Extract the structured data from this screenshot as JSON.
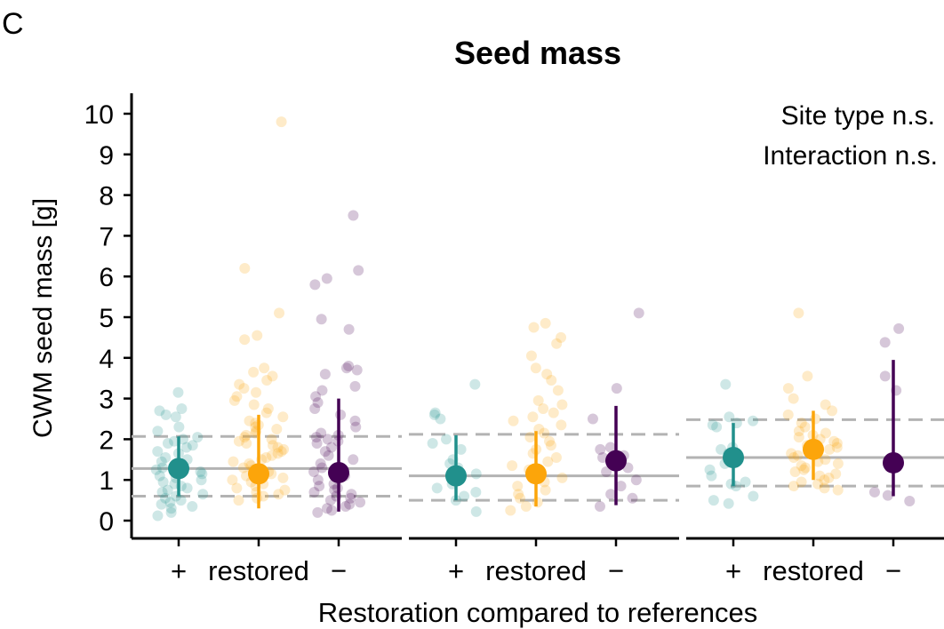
{
  "panel_letter": "C",
  "chart_data": {
    "type": "scatter",
    "title": "Seed mass",
    "xlabel": "Restoration compared to references",
    "ylabel": "CWM seed mass [g]",
    "ylim": [
      -0.4,
      10.5
    ],
    "yticks": [
      0,
      1,
      2,
      3,
      4,
      5,
      6,
      7,
      8,
      9,
      10
    ],
    "annotations": [
      "Site type n.s.",
      "Interaction n.s."
    ],
    "grid": false,
    "colors": {
      "plus": "#21908C",
      "restored": "#FCA50A",
      "minus": "#440154",
      "reference_line": "#B3B3B3"
    },
    "panels": [
      {
        "categories": [
          "+",
          "restored",
          "−"
        ],
        "reference": {
          "median": 1.28,
          "lower": 0.6,
          "upper": 2.07
        },
        "summary": [
          {
            "category": "+",
            "mean": 1.28,
            "low": 0.6,
            "high": 2.07
          },
          {
            "category": "restored",
            "mean": 1.15,
            "low": 0.3,
            "high": 2.6
          },
          {
            "category": "−",
            "mean": 1.18,
            "low": 0.22,
            "high": 3.0
          }
        ],
        "points": {
          "+": [
            3.15,
            2.75,
            2.7,
            2.6,
            2.55,
            2.3,
            2.2,
            2.05,
            2.0,
            1.95,
            1.9,
            1.85,
            1.8,
            1.7,
            1.65,
            1.55,
            1.5,
            1.45,
            1.4,
            1.35,
            1.3,
            1.25,
            1.2,
            1.15,
            1.1,
            1.05,
            1.0,
            0.95,
            0.9,
            0.85,
            0.8,
            0.75,
            0.7,
            0.65,
            0.6,
            0.55,
            0.5,
            0.45,
            0.4,
            0.35,
            0.3,
            0.2,
            0.12
          ],
          "restored": [
            9.8,
            6.2,
            5.1,
            4.55,
            4.45,
            3.75,
            3.65,
            3.55,
            3.45,
            3.35,
            3.25,
            3.15,
            3.05,
            2.95,
            2.85,
            2.75,
            2.65,
            2.55,
            2.45,
            2.4,
            2.35,
            2.3,
            2.25,
            2.2,
            2.15,
            2.1,
            2.05,
            2.0,
            1.95,
            1.9,
            1.85,
            1.8,
            1.75,
            1.7,
            1.65,
            1.6,
            1.55,
            1.5,
            1.45,
            1.4,
            1.35,
            1.3,
            1.25,
            1.2,
            1.15,
            1.1,
            1.05,
            1.0,
            0.95,
            0.9,
            0.85,
            0.8,
            0.75,
            0.7,
            0.65,
            0.6,
            0.55,
            0.5
          ],
          "−": [
            7.5,
            6.15,
            5.95,
            5.8,
            4.95,
            4.7,
            3.8,
            3.75,
            3.7,
            3.6,
            3.3,
            3.2,
            3.05,
            2.9,
            2.75,
            2.6,
            2.45,
            2.3,
            2.15,
            2.1,
            2.05,
            2.0,
            1.95,
            1.9,
            1.8,
            1.7,
            1.6,
            1.5,
            1.4,
            1.3,
            1.2,
            1.1,
            1.0,
            0.9,
            0.85,
            0.8,
            0.75,
            0.7,
            0.65,
            0.6,
            0.55,
            0.5,
            0.45,
            0.4,
            0.35,
            0.3,
            0.25,
            0.2
          ]
        }
      },
      {
        "categories": [
          "+",
          "restored",
          "−"
        ],
        "reference": {
          "median": 1.1,
          "lower": 0.5,
          "upper": 2.12
        },
        "summary": [
          {
            "category": "+",
            "mean": 1.1,
            "low": 0.5,
            "high": 2.1
          },
          {
            "category": "restored",
            "mean": 1.15,
            "low": 0.35,
            "high": 2.2
          },
          {
            "category": "−",
            "mean": 1.47,
            "low": 0.38,
            "high": 2.82
          }
        ],
        "points": {
          "+": [
            3.35,
            2.65,
            2.6,
            2.5,
            2.0,
            1.9,
            1.75,
            1.5,
            1.4,
            1.3,
            1.15,
            1.0,
            0.9,
            0.8,
            0.7,
            0.6,
            0.5,
            0.22
          ],
          "restored": [
            4.85,
            4.75,
            4.5,
            4.35,
            4.05,
            3.75,
            3.6,
            3.45,
            3.2,
            2.95,
            2.85,
            2.75,
            2.65,
            2.55,
            2.45,
            2.35,
            2.25,
            2.15,
            2.05,
            1.95,
            1.85,
            1.75,
            1.65,
            1.55,
            1.45,
            1.35,
            1.25,
            1.15,
            1.05,
            0.95,
            0.85,
            0.75,
            0.65,
            0.55,
            0.45,
            0.35,
            0.25
          ],
          "−": [
            5.1,
            3.25,
            2.5,
            1.8,
            1.75,
            1.6,
            1.55,
            1.3,
            1.2,
            1.0,
            0.85,
            0.65,
            0.55,
            0.35
          ]
        }
      },
      {
        "categories": [
          "+",
          "restored",
          "−"
        ],
        "reference": {
          "median": 1.55,
          "lower": 0.85,
          "upper": 2.48
        },
        "summary": [
          {
            "category": "+",
            "mean": 1.55,
            "low": 0.85,
            "high": 2.4
          },
          {
            "category": "restored",
            "mean": 1.75,
            "low": 1.0,
            "high": 2.7
          },
          {
            "category": "−",
            "mean": 1.42,
            "low": 0.6,
            "high": 3.95
          }
        ],
        "points": {
          "+": [
            3.35,
            2.55,
            2.45,
            2.4,
            2.35,
            2.3,
            1.8,
            1.75,
            1.65,
            1.5,
            1.4,
            1.25,
            1.1,
            0.95,
            0.9,
            0.85,
            0.6,
            0.5,
            0.42
          ],
          "restored": [
            5.1,
            3.55,
            3.25,
            3.0,
            2.85,
            2.7,
            2.6,
            2.5,
            2.4,
            2.3,
            2.2,
            2.15,
            2.1,
            2.05,
            2.0,
            1.95,
            1.9,
            1.85,
            1.8,
            1.75,
            1.7,
            1.65,
            1.6,
            1.55,
            1.5,
            1.45,
            1.4,
            1.35,
            1.3,
            1.25,
            1.2,
            1.15,
            1.1,
            1.05,
            1.0,
            0.95,
            0.9,
            0.85,
            0.8,
            0.75
          ],
          "−": [
            4.72,
            4.38,
            3.55,
            3.2,
            1.35,
            0.7,
            0.62,
            0.48
          ]
        }
      }
    ]
  }
}
